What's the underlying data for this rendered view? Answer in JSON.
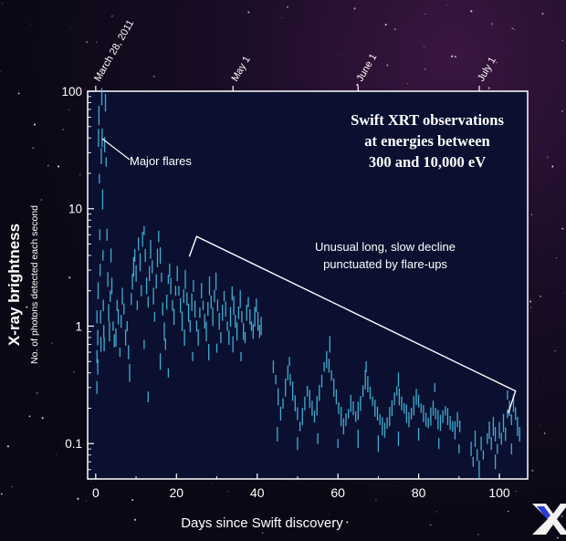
{
  "colors": {
    "data": "#4cc8ee",
    "frame": "#ffffff",
    "plot_bg": "#0b1030"
  },
  "icons": {
    "corner_logo": "x-logo-icon"
  },
  "chart_data": {
    "type": "scatter",
    "title": "Swift XRT observations at energies between 300 and 10,000 eV",
    "title_lines": [
      "Swift XRT observations",
      "at energies between",
      "300 and 10,000 eV"
    ],
    "xlabel": "Days since Swift discovery",
    "ylabel": "X-ray brightness",
    "ylabel_sub": "No. of photons detected each second",
    "xlim": [
      -2,
      107
    ],
    "ylim": [
      0.05,
      100
    ],
    "y_scale": "log",
    "x_ticks": [
      0,
      20,
      40,
      60,
      80,
      100
    ],
    "y_ticks": [
      {
        "value": 0.1,
        "label": "0.1"
      },
      {
        "value": 1,
        "label": "1"
      },
      {
        "value": 10,
        "label": "10"
      },
      {
        "value": 100,
        "label": "100"
      }
    ],
    "top_axis": [
      {
        "label": "March 28, 2011",
        "day": 0
      },
      {
        "label": "May 1",
        "day": 34
      },
      {
        "label": "June 1",
        "day": 65
      },
      {
        "label": "July 1",
        "day": 95
      }
    ],
    "annotations": [
      {
        "text": "Major flares",
        "x": 3,
        "y": 52
      },
      {
        "text": "Unusual long, slow decline",
        "text2": "punctuated by flare-ups",
        "x1": 25,
        "y1": 5.8,
        "x2": 104,
        "y2": 0.28
      }
    ],
    "series": [
      {
        "values": [
          [
            0.3,
            0.3
          ],
          [
            0.3,
            0.55
          ],
          [
            0.3,
            1.2
          ],
          [
            0.5,
            0.45
          ],
          [
            0.5,
            0.8
          ],
          [
            0.6,
            2.0
          ],
          [
            0.7,
            40
          ],
          [
            0.8,
            62
          ],
          [
            0.9,
            18
          ],
          [
            1.0,
            6
          ],
          [
            1.1,
            3
          ],
          [
            1.2,
            1.2
          ],
          [
            1.3,
            0.7
          ],
          [
            1.4,
            28
          ],
          [
            1.5,
            90
          ],
          [
            1.6,
            40
          ],
          [
            1.7,
            12
          ],
          [
            1.8,
            4
          ],
          [
            1.9,
            1.5
          ],
          [
            2.0,
            0.9
          ],
          [
            2.1,
            0.7
          ],
          [
            2.2,
            35
          ],
          [
            2.4,
            80
          ],
          [
            2.6,
            25
          ],
          [
            2.8,
            6
          ],
          [
            3.0,
            2.5
          ],
          [
            3.2,
            1.3
          ],
          [
            3.4,
            0.9
          ],
          [
            3.6,
            1.8
          ],
          [
            3.8,
            4
          ],
          [
            4.0,
            2.2
          ],
          [
            4.3,
            1.0
          ],
          [
            4.6,
            0.75
          ],
          [
            5.0,
            0.8
          ],
          [
            5.3,
            1.5
          ],
          [
            5.6,
            1.2
          ],
          [
            6.0,
            0.6
          ],
          [
            6.3,
            1.1
          ],
          [
            6.6,
            1.8
          ],
          [
            7.0,
            1.4
          ],
          [
            7.4,
            0.8
          ],
          [
            7.8,
            1.0
          ],
          [
            8.1,
            0.6
          ],
          [
            8.4,
            0.4
          ],
          [
            8.8,
            1.7
          ],
          [
            9.1,
            2.4
          ],
          [
            9.4,
            3.2
          ],
          [
            9.7,
            4.0
          ],
          [
            10.0,
            2.8
          ],
          [
            10.3,
            1.5
          ],
          [
            10.6,
            5.0
          ],
          [
            11.0,
            3.5
          ],
          [
            11.3,
            2.0
          ],
          [
            11.6,
            5.5
          ],
          [
            12.0,
            6.5
          ],
          [
            12.3,
            4.0
          ],
          [
            12.6,
            2.2
          ],
          [
            13.0,
            1.6
          ],
          [
            13.3,
            2.8
          ],
          [
            13.6,
            4.5
          ],
          [
            14.0,
            3.2
          ],
          [
            14.3,
            1.8
          ],
          [
            14.6,
            1.2
          ],
          [
            15.0,
            2.4
          ],
          [
            15.3,
            3.8
          ],
          [
            15.6,
            5.8
          ],
          [
            16.0,
            4.0
          ],
          [
            16.3,
            2.6
          ],
          [
            16.6,
            1.4
          ],
          [
            17.0,
            0.9
          ],
          [
            17.3,
            0.7
          ],
          [
            17.6,
            1.6
          ],
          [
            18.0,
            2.5
          ],
          [
            18.3,
            3.0
          ],
          [
            18.6,
            2.2
          ],
          [
            19.0,
            1.5
          ],
          [
            19.4,
            1.2
          ],
          [
            19.8,
            2.0
          ],
          [
            20.2,
            2.8
          ],
          [
            20.6,
            2.0
          ],
          [
            21.0,
            1.5
          ],
          [
            21.4,
            1.1
          ],
          [
            21.8,
            1.8
          ],
          [
            22.2,
            2.5
          ],
          [
            22.6,
            1.7
          ],
          [
            23.0,
            1.3
          ],
          [
            23.4,
            1.0
          ],
          [
            23.8,
            1.6
          ],
          [
            24.2,
            2.2
          ],
          [
            24.6,
            1.4
          ],
          [
            25.0,
            1.0
          ],
          [
            25.4,
            0.8
          ],
          [
            25.8,
            1.3
          ],
          [
            26.2,
            2.0
          ],
          [
            26.6,
            1.5
          ],
          [
            27.0,
            1.1
          ],
          [
            27.4,
            0.9
          ],
          [
            27.8,
            1.4
          ],
          [
            28.2,
            2.2
          ],
          [
            28.6,
            1.6
          ],
          [
            29.0,
            1.2
          ],
          [
            29.4,
            1.8
          ],
          [
            29.8,
            2.4
          ],
          [
            30.2,
            1.5
          ],
          [
            30.6,
            1.1
          ],
          [
            31.0,
            0.8
          ],
          [
            31.4,
            1.3
          ],
          [
            31.8,
            1.8
          ],
          [
            32.2,
            1.4
          ],
          [
            32.6,
            1.0
          ],
          [
            33.0,
            0.8
          ],
          [
            33.4,
            1.2
          ],
          [
            33.8,
            1.9
          ],
          [
            34.2,
            1.5
          ],
          [
            34.6,
            1.1
          ],
          [
            35.0,
            0.9
          ],
          [
            35.4,
            1.3
          ],
          [
            35.8,
            1.7
          ],
          [
            36.2,
            1.2
          ],
          [
            36.6,
            0.9
          ],
          [
            37.0,
            0.8
          ],
          [
            37.4,
            1.3
          ],
          [
            37.8,
            1.6
          ],
          [
            38.2,
            1.2
          ],
          [
            38.6,
            1.0
          ],
          [
            39.0,
            0.9
          ],
          [
            39.4,
            1.2
          ],
          [
            39.8,
            1.5
          ],
          [
            40.2,
            1.1
          ],
          [
            40.6,
            0.9
          ],
          [
            41.0,
            1.0
          ],
          [
            13.0,
            0.25
          ],
          [
            18.0,
            0.4
          ],
          [
            24.0,
            0.55
          ],
          [
            30.0,
            0.65
          ],
          [
            36.0,
            0.55
          ],
          [
            12.0,
            0.7
          ],
          [
            16.0,
            0.5
          ],
          [
            22.0,
            0.8
          ],
          [
            28.0,
            0.6
          ],
          [
            34.0,
            0.7
          ],
          [
            44.0,
            0.45
          ],
          [
            44.6,
            0.35
          ],
          [
            45.2,
            0.25
          ],
          [
            45.8,
            0.18
          ],
          [
            46.4,
            0.22
          ],
          [
            47.0,
            0.3
          ],
          [
            47.6,
            0.4
          ],
          [
            48.2,
            0.35
          ],
          [
            48.8,
            0.28
          ],
          [
            49.4,
            0.22
          ],
          [
            50.0,
            0.18
          ],
          [
            50.6,
            0.14
          ],
          [
            51.2,
            0.17
          ],
          [
            51.8,
            0.22
          ],
          [
            52.4,
            0.28
          ],
          [
            53.0,
            0.24
          ],
          [
            53.6,
            0.2
          ],
          [
            54.2,
            0.17
          ],
          [
            54.8,
            0.21
          ],
          [
            55.4,
            0.27
          ],
          [
            56.0,
            0.34
          ],
          [
            56.6,
            0.45
          ],
          [
            57.2,
            0.52
          ],
          [
            57.8,
            0.46
          ],
          [
            58.4,
            0.38
          ],
          [
            59.0,
            0.3
          ],
          [
            59.6,
            0.25
          ],
          [
            60.2,
            0.2
          ],
          [
            60.8,
            0.17
          ],
          [
            61.4,
            0.14
          ],
          [
            62.0,
            0.16
          ],
          [
            62.6,
            0.18
          ],
          [
            63.2,
            0.22
          ],
          [
            63.8,
            0.2
          ],
          [
            64.4,
            0.17
          ],
          [
            65.0,
            0.19
          ],
          [
            65.6,
            0.22
          ],
          [
            66.2,
            0.28
          ],
          [
            66.8,
            0.35
          ],
          [
            67.4,
            0.32
          ],
          [
            68.0,
            0.27
          ],
          [
            68.6,
            0.23
          ],
          [
            69.2,
            0.2
          ],
          [
            69.8,
            0.18
          ],
          [
            70.4,
            0.16
          ],
          [
            71.0,
            0.14
          ],
          [
            71.6,
            0.13
          ],
          [
            72.2,
            0.15
          ],
          [
            72.8,
            0.17
          ],
          [
            73.4,
            0.2
          ],
          [
            74.0,
            0.24
          ],
          [
            74.6,
            0.28
          ],
          [
            75.2,
            0.25
          ],
          [
            75.8,
            0.22
          ],
          [
            76.4,
            0.2
          ],
          [
            77.0,
            0.18
          ],
          [
            77.6,
            0.16
          ],
          [
            78.2,
            0.18
          ],
          [
            78.8,
            0.21
          ],
          [
            79.4,
            0.25
          ],
          [
            80.0,
            0.23
          ],
          [
            80.6,
            0.2
          ],
          [
            81.2,
            0.18
          ],
          [
            81.8,
            0.16
          ],
          [
            82.4,
            0.15
          ],
          [
            83.0,
            0.17
          ],
          [
            83.6,
            0.2
          ],
          [
            84.2,
            0.18
          ],
          [
            84.8,
            0.16
          ],
          [
            85.4,
            0.15
          ],
          [
            86.0,
            0.17
          ],
          [
            86.6,
            0.19
          ],
          [
            87.2,
            0.17
          ],
          [
            87.8,
            0.15
          ],
          [
            88.4,
            0.14
          ],
          [
            89.0,
            0.13
          ],
          [
            89.6,
            0.16
          ],
          [
            90.2,
            0.14
          ],
          [
            93.0,
            0.09
          ],
          [
            93.5,
            0.07
          ],
          [
            94.0,
            0.11
          ],
          [
            94.5,
            0.08
          ],
          [
            95.0,
            0.06
          ],
          [
            95.5,
            0.1
          ],
          [
            96.0,
            0.08
          ],
          [
            97.0,
            0.11
          ],
          [
            97.5,
            0.13
          ],
          [
            98.0,
            0.1
          ],
          [
            98.5,
            0.14
          ],
          [
            99.0,
            0.12
          ],
          [
            99.5,
            0.09
          ],
          [
            100.0,
            0.13
          ],
          [
            100.5,
            0.11
          ],
          [
            101.0,
            0.15
          ],
          [
            101.5,
            0.12
          ],
          [
            102.0,
            0.18
          ],
          [
            102.5,
            0.2
          ],
          [
            103.0,
            0.16
          ],
          [
            103.5,
            0.22
          ],
          [
            104.0,
            0.18
          ],
          [
            104.5,
            0.14
          ],
          [
            105.0,
            0.12
          ],
          [
            45.0,
            0.12
          ],
          [
            50.0,
            0.1
          ],
          [
            55.0,
            0.11
          ],
          [
            60.0,
            0.1
          ],
          [
            65.0,
            0.11
          ],
          [
            70.0,
            0.1
          ],
          [
            75.0,
            0.11
          ],
          [
            80.0,
            0.12
          ],
          [
            85.0,
            0.1
          ],
          [
            90.0,
            0.09
          ],
          [
            99.0,
            0.07
          ],
          [
            103.0,
            0.09
          ],
          [
            48.0,
            0.5
          ],
          [
            58.0,
            0.7
          ],
          [
            67.0,
            0.45
          ],
          [
            75.0,
            0.35
          ],
          [
            84.0,
            0.3
          ],
          [
            102.0,
            0.26
          ]
        ]
      }
    ]
  }
}
